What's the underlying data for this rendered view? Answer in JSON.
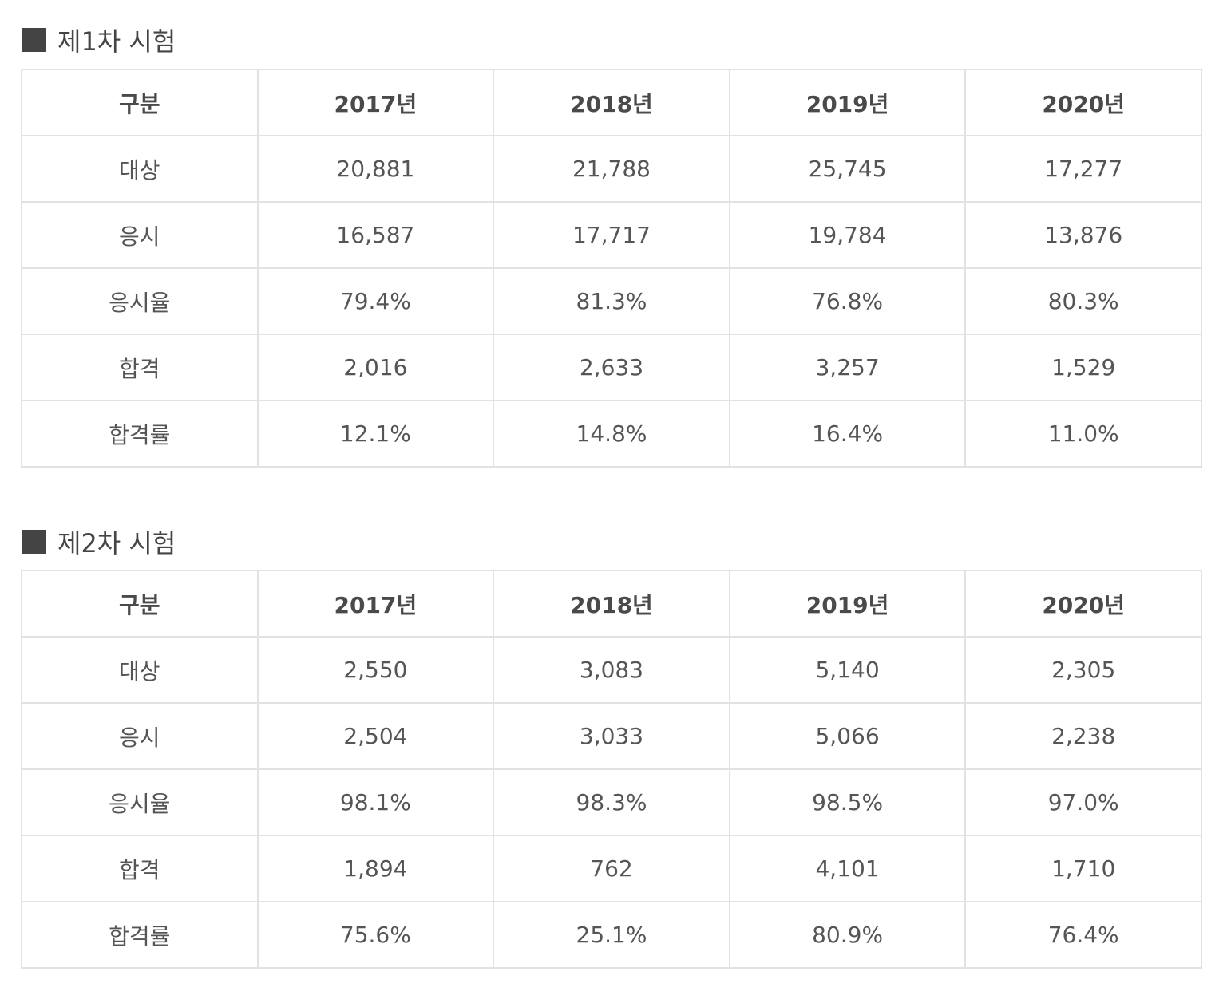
{
  "sections": [
    {
      "title": "제1차 시험",
      "headers": [
        "구분",
        "2017년",
        "2018년",
        "2019년",
        "2020년"
      ],
      "rows": [
        {
          "label": "대상",
          "values": [
            "20,881",
            "21,788",
            "25,745",
            "17,277"
          ]
        },
        {
          "label": "응시",
          "values": [
            "16,587",
            "17,717",
            "19,784",
            "13,876"
          ]
        },
        {
          "label": "응시율",
          "values": [
            "79.4%",
            "81.3%",
            "76.8%",
            "80.3%"
          ]
        },
        {
          "label": "합격",
          "values": [
            "2,016",
            "2,633",
            "3,257",
            "1,529"
          ]
        },
        {
          "label": "합격률",
          "values": [
            "12.1%",
            "14.8%",
            "16.4%",
            "11.0%"
          ]
        }
      ]
    },
    {
      "title": "제2차 시험",
      "headers": [
        "구분",
        "2017년",
        "2018년",
        "2019년",
        "2020년"
      ],
      "rows": [
        {
          "label": "대상",
          "values": [
            "2,550",
            "3,083",
            "5,140",
            "2,305"
          ]
        },
        {
          "label": "응시",
          "values": [
            "2,504",
            "3,033",
            "5,066",
            "2,238"
          ]
        },
        {
          "label": "응시율",
          "values": [
            "98.1%",
            "98.3%",
            "98.5%",
            "97.0%"
          ]
        },
        {
          "label": "합격",
          "values": [
            "1,894",
            "762",
            "4,101",
            "1,710"
          ]
        },
        {
          "label": "합격률",
          "values": [
            "75.6%",
            "25.1%",
            "80.9%",
            "76.4%"
          ]
        }
      ]
    }
  ],
  "colors": {
    "text": "#555555",
    "heading": "#444444",
    "border": "#e2e2e2"
  }
}
